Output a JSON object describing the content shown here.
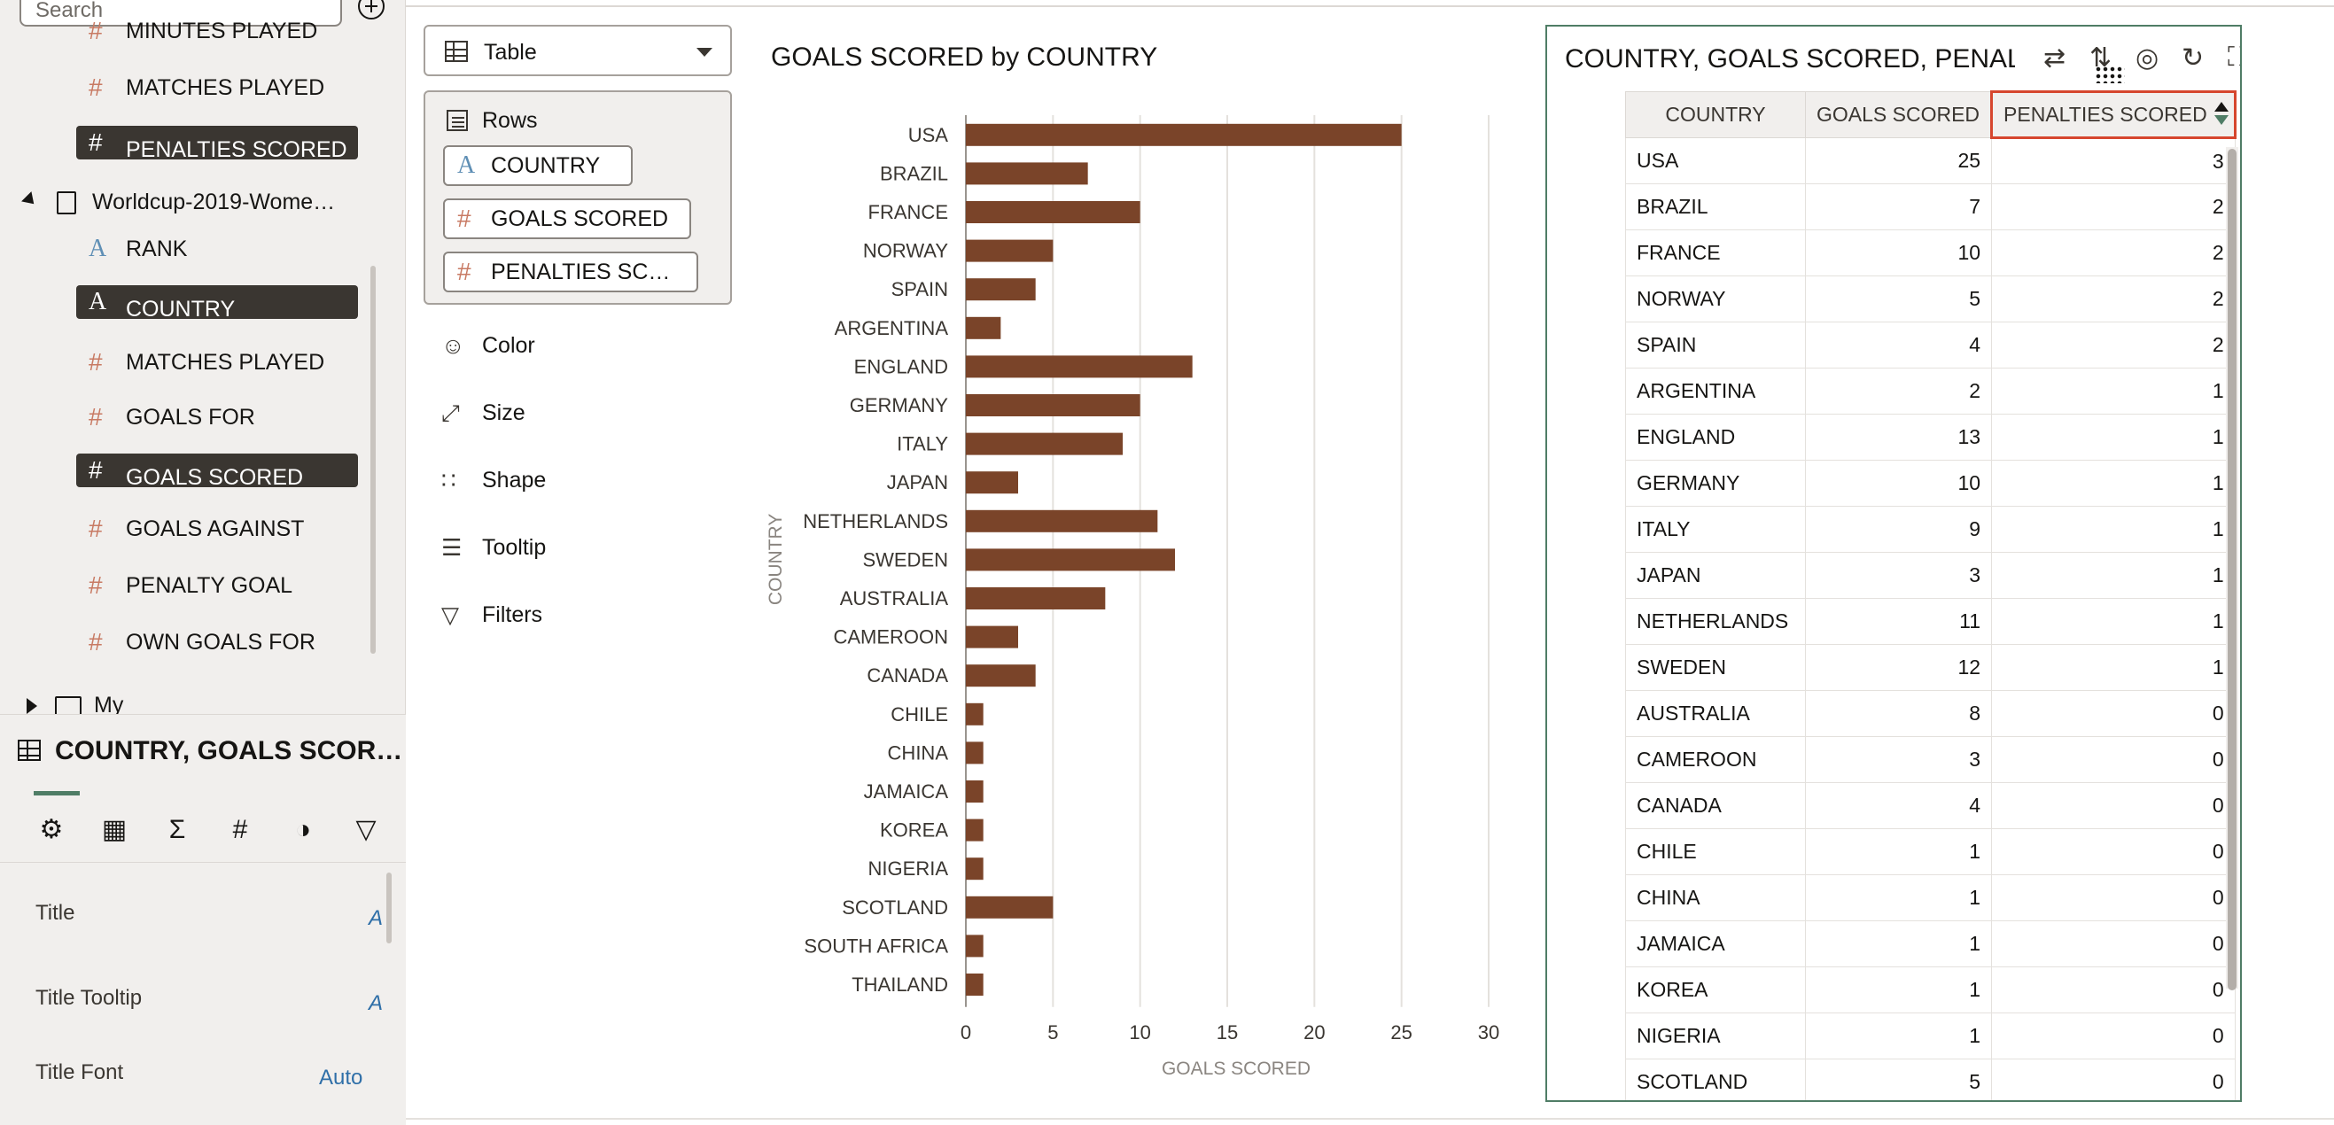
{
  "data_panel": {
    "search_placeholder": "Search",
    "items_top": [
      {
        "icon": "#",
        "label": "MINUTES PLAYED",
        "selected": false
      },
      {
        "icon": "#",
        "label": "MATCHES PLAYED",
        "selected": false
      },
      {
        "icon": "#",
        "label": "PENALTIES SCORED",
        "selected": true
      }
    ],
    "dataset_label": "Worldcup-2019-Wome…",
    "items": [
      {
        "icon": "A",
        "label": "RANK",
        "selected": false
      },
      {
        "icon": "A",
        "label": "COUNTRY",
        "selected": true
      },
      {
        "icon": "#",
        "label": "MATCHES PLAYED",
        "selected": false
      },
      {
        "icon": "#",
        "label": "GOALS FOR",
        "selected": false
      },
      {
        "icon": "#",
        "label": "GOALS SCORED",
        "selected": true
      },
      {
        "icon": "#",
        "label": "GOALS AGAINST",
        "selected": false
      },
      {
        "icon": "#",
        "label": "PENALTY GOAL",
        "selected": false
      },
      {
        "icon": "#",
        "label": "OWN GOALS FOR",
        "selected": false
      }
    ],
    "my_calculations_label": "My Calculations"
  },
  "properties": {
    "title": "COUNTRY, GOALS SCOR…",
    "tabs": [
      "general-icon",
      "table-icon",
      "sigma-icon",
      "hash-icon",
      "circles-icon",
      "filter-icon"
    ],
    "tab_glyphs": [
      "⚙",
      "▦",
      "Σ",
      "#",
      "◑",
      "▽"
    ],
    "rows": [
      {
        "label": "Title",
        "value": "A"
      },
      {
        "label": "Title Tooltip",
        "value": "A"
      },
      {
        "label": "Title Font",
        "value": "Auto"
      }
    ]
  },
  "grammar": {
    "viz_type": "Table",
    "rows_label": "Rows",
    "row_pills": [
      {
        "icon": "A",
        "label": "COUNTRY"
      },
      {
        "icon": "#",
        "label": "GOALS SCORED"
      },
      {
        "icon": "#",
        "label": "PENALTIES SC…"
      }
    ],
    "sections": [
      {
        "icon": "palette-icon",
        "glyph": "☺",
        "label": "Color"
      },
      {
        "icon": "size-icon",
        "glyph": "⤢",
        "label": "Size"
      },
      {
        "icon": "shape-icon",
        "glyph": "∷",
        "label": "Shape"
      },
      {
        "icon": "tooltip-icon",
        "glyph": "☰",
        "label": "Tooltip"
      },
      {
        "icon": "filter-icon",
        "glyph": "▽",
        "label": "Filters"
      }
    ]
  },
  "chart_title": "GOALS SCORED by COUNTRY",
  "chart_data": {
    "type": "bar",
    "orientation": "horizontal",
    "categories": [
      "USA",
      "BRAZIL",
      "FRANCE",
      "NORWAY",
      "SPAIN",
      "ARGENTINA",
      "ENGLAND",
      "GERMANY",
      "ITALY",
      "JAPAN",
      "NETHERLANDS",
      "SWEDEN",
      "AUSTRALIA",
      "CAMEROON",
      "CANADA",
      "CHILE",
      "CHINA",
      "JAMAICA",
      "KOREA",
      "NIGERIA",
      "SCOTLAND",
      "SOUTH AFRICA",
      "THAILAND"
    ],
    "values": [
      25,
      7,
      10,
      5,
      4,
      2,
      13,
      10,
      9,
      3,
      11,
      12,
      8,
      3,
      4,
      1,
      1,
      1,
      1,
      1,
      5,
      1,
      1
    ],
    "title": "GOALS SCORED by COUNTRY",
    "xlabel": "GOALS SCORED",
    "ylabel": "COUNTRY",
    "xlim": [
      0,
      30
    ],
    "xticks": [
      0,
      5,
      10,
      15,
      20,
      25,
      30
    ],
    "grid": true,
    "bar_color": "#7a4429"
  },
  "table_viz": {
    "title": "COUNTRY, GOALS SCORED, PENALTIES SCORED",
    "columns": [
      "COUNTRY",
      "GOALS SCORED",
      "PENALTIES SCORED"
    ],
    "rows": [
      [
        "USA",
        "25",
        "3"
      ],
      [
        "BRAZIL",
        "7",
        "2"
      ],
      [
        "FRANCE",
        "10",
        "2"
      ],
      [
        "NORWAY",
        "5",
        "2"
      ],
      [
        "SPAIN",
        "4",
        "2"
      ],
      [
        "ARGENTINA",
        "2",
        "1"
      ],
      [
        "ENGLAND",
        "13",
        "1"
      ],
      [
        "GERMANY",
        "10",
        "1"
      ],
      [
        "ITALY",
        "9",
        "1"
      ],
      [
        "JAPAN",
        "3",
        "1"
      ],
      [
        "NETHERLANDS",
        "11",
        "1"
      ],
      [
        "SWEDEN",
        "12",
        "1"
      ],
      [
        "AUSTRALIA",
        "8",
        "0"
      ],
      [
        "CAMEROON",
        "3",
        "0"
      ],
      [
        "CANADA",
        "4",
        "0"
      ],
      [
        "CHILE",
        "1",
        "0"
      ],
      [
        "CHINA",
        "1",
        "0"
      ],
      [
        "JAMAICA",
        "1",
        "0"
      ],
      [
        "KOREA",
        "1",
        "0"
      ],
      [
        "NIGERIA",
        "1",
        "0"
      ],
      [
        "SCOTLAND",
        "5",
        "0"
      ]
    ],
    "toolbar_icons": [
      "swap-icon",
      "sort-icon",
      "fingerprint-icon",
      "refresh-icon",
      "maximize-icon",
      "more-icon"
    ]
  },
  "colors": {
    "accent_green": "#4f7d66",
    "bar": "#7a4429",
    "selection_red": "#d6462e",
    "measure_icon": "#c87a63",
    "attribute_icon": "#5f8fb5"
  }
}
